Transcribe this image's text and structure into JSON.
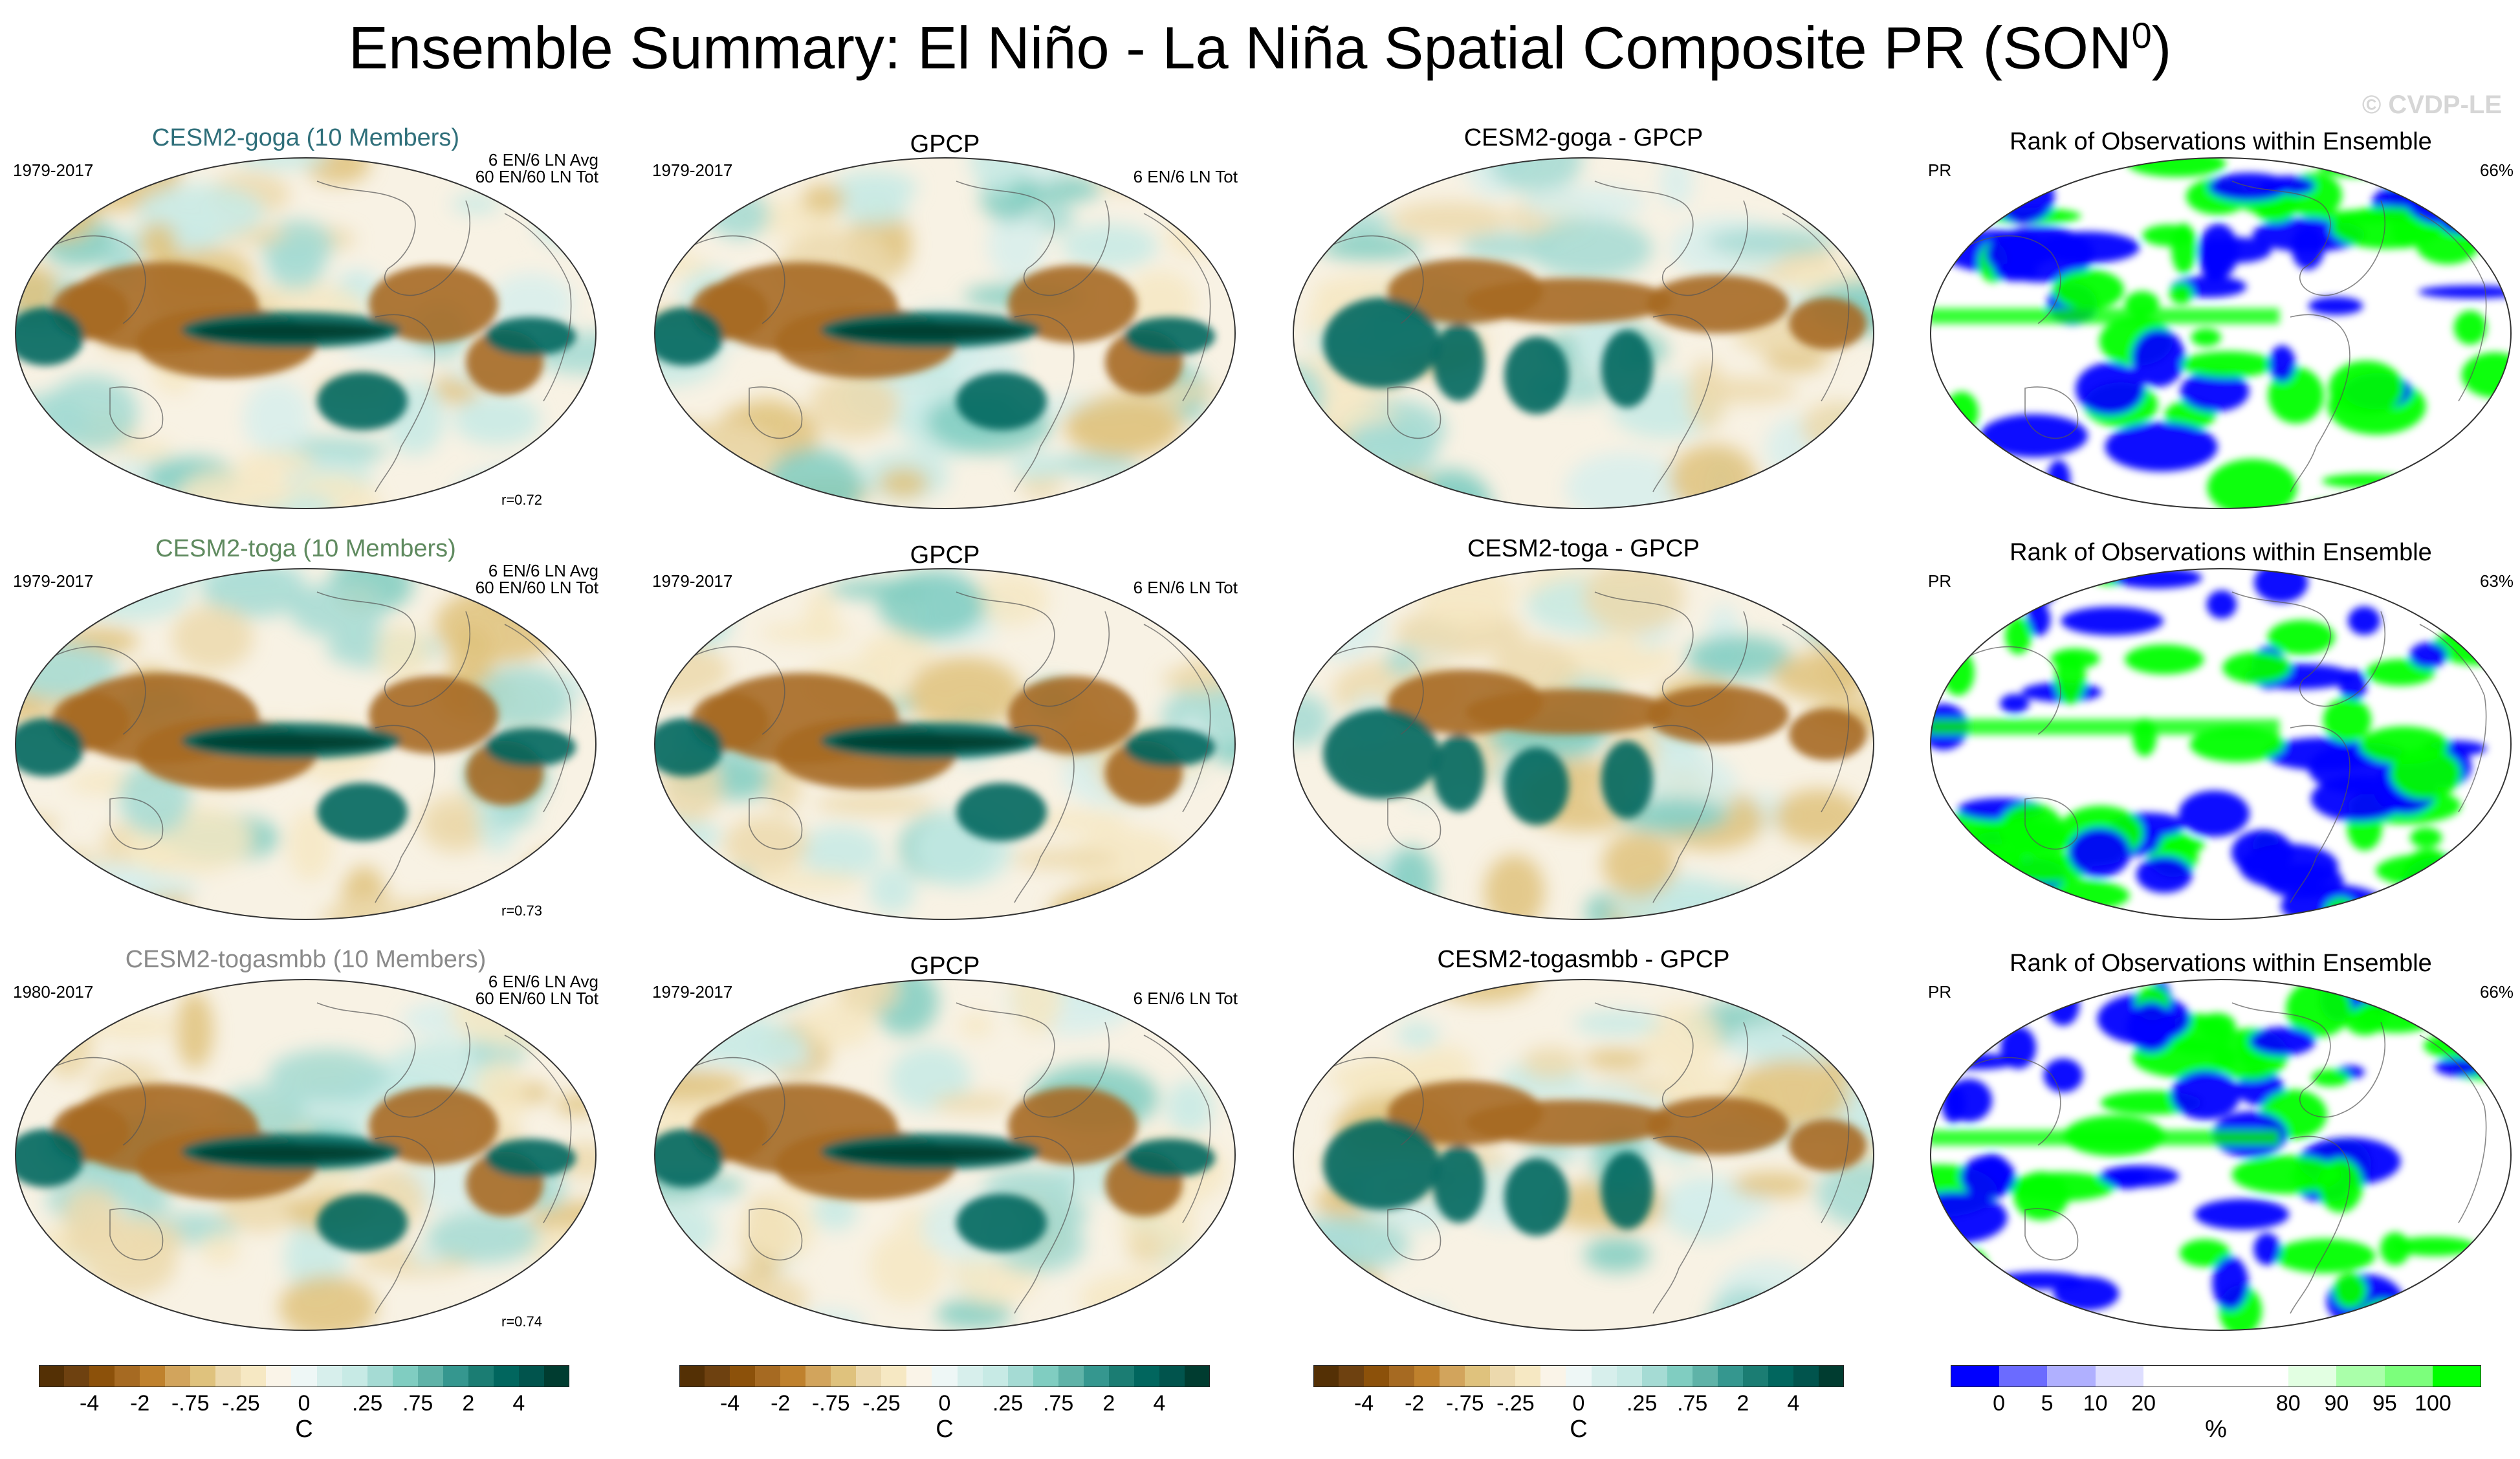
{
  "title": {
    "main": "Ensemble Summary: El Niño - La Niña Spatial Composite PR (SON",
    "sup": "0",
    "close": ")"
  },
  "watermark": "© CVDP-LE",
  "rows": [
    {
      "model_title": "CESM2-goga (10 Members)",
      "model_color": "#2f6f7a",
      "years": "1979-2017",
      "info1": "6 EN/6 LN Avg",
      "info2": "60 EN/60 LN Tot",
      "r": "r=0.72",
      "obs_title": "GPCP",
      "obs_years": "1979-2017",
      "obs_info": "6 EN/6 LN Tot",
      "diff_title": "CESM2-goga - GPCP",
      "rank_title": "Rank of Observations within Ensemble",
      "rank_var": "PR",
      "rank_pct": "66%"
    },
    {
      "model_title": "CESM2-toga (10 Members)",
      "model_color": "#5f8a5f",
      "years": "1979-2017",
      "info1": "6 EN/6 LN Avg",
      "info2": "60 EN/60 LN Tot",
      "r": "r=0.73",
      "obs_title": "GPCP",
      "obs_years": "1979-2017",
      "obs_info": "6 EN/6 LN Tot",
      "diff_title": "CESM2-toga - GPCP",
      "rank_title": "Rank of Observations within Ensemble",
      "rank_var": "PR",
      "rank_pct": "63%"
    },
    {
      "model_title": "CESM2-togasmbb (10 Members)",
      "model_color": "#8a8a8a",
      "years": "1980-2017",
      "info1": "6 EN/6 LN Avg",
      "info2": "60 EN/60 LN Tot",
      "r": "r=0.74",
      "obs_title": "GPCP",
      "obs_years": "1979-2017",
      "obs_info": "6 EN/6 LN Tot",
      "diff_title": "CESM2-togasmbb - GPCP",
      "rank_title": "Rank of Observations within Ensemble",
      "rank_var": "PR",
      "rank_pct": "66%"
    }
  ],
  "colorbar_pr": {
    "units": "C",
    "levels": [
      "-4",
      "-2",
      "-.75",
      "-.25",
      "0",
      ".25",
      ".75",
      "2",
      "4"
    ],
    "colors": [
      "#543005",
      "#6e4110",
      "#8c510a",
      "#a66a22",
      "#bf812d",
      "#d2a45c",
      "#dfc27d",
      "#ecd9ad",
      "#f6e8c3",
      "#faf4e8",
      "#eef7f6",
      "#d7efec",
      "#c7eae5",
      "#a5dbd4",
      "#80cdc1",
      "#5fb3a8",
      "#35978f",
      "#1b7d73",
      "#01665e",
      "#01544d",
      "#003c30"
    ]
  },
  "colorbar_rank": {
    "units": "%",
    "levels": [
      "0",
      "5",
      "10",
      "20",
      "80",
      "90",
      "95",
      "100"
    ],
    "colors": [
      "#0000ff",
      "#6b6bff",
      "#b0b0ff",
      "#dedeff",
      "#ffffff",
      "#ffffff",
      "#ffffff",
      "#e2ffe2",
      "#aaffaa",
      "#7cff7c",
      "#00ff00"
    ]
  },
  "chart_data": {
    "type": "heatmap",
    "title": "Ensemble Summary: El Niño - La Niña Spatial Composite PR (SON0)",
    "panels": [
      [
        "CESM2-goga (10 Members)",
        "GPCP",
        "CESM2-goga - GPCP",
        "Rank of Observations within Ensemble"
      ],
      [
        "CESM2-toga (10 Members)",
        "GPCP",
        "CESM2-toga - GPCP",
        "Rank of Observations within Ensemble"
      ],
      [
        "CESM2-togasmbb (10 Members)",
        "GPCP",
        "CESM2-togasmbb - GPCP",
        "Rank of Observations within Ensemble"
      ]
    ],
    "pattern_correlations": [
      0.72,
      0.73,
      0.74
    ],
    "rank_percent": [
      66,
      63,
      66
    ],
    "colorbar_levels": [
      -4,
      -2,
      -0.75,
      -0.25,
      0,
      0.25,
      0.75,
      2,
      4
    ],
    "rank_levels": [
      0,
      5,
      10,
      20,
      80,
      90,
      95,
      100
    ]
  }
}
